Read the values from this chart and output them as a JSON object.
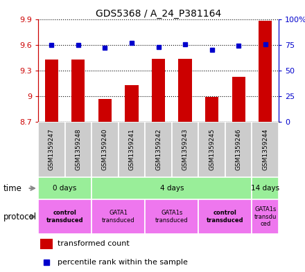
{
  "title": "GDS5368 / A_24_P381164",
  "samples": [
    "GSM1359247",
    "GSM1359248",
    "GSM1359240",
    "GSM1359241",
    "GSM1359242",
    "GSM1359243",
    "GSM1359245",
    "GSM1359246",
    "GSM1359244"
  ],
  "red_values": [
    9.43,
    9.43,
    8.97,
    9.13,
    9.44,
    9.44,
    8.99,
    9.23,
    9.88
  ],
  "blue_values": [
    75,
    75,
    72,
    77,
    73,
    76,
    70,
    74,
    76
  ],
  "ylim_left": [
    8.7,
    9.9
  ],
  "ylim_right": [
    0,
    100
  ],
  "yticks_left": [
    8.7,
    9.0,
    9.3,
    9.6,
    9.9
  ],
  "ytick_labels_left": [
    "8.7",
    "9",
    "9.3",
    "9.6",
    "9.9"
  ],
  "yticks_right": [
    0,
    25,
    50,
    75,
    100
  ],
  "ytick_labels_right": [
    "0",
    "25",
    "50",
    "75",
    "100%"
  ],
  "bar_color": "#cc0000",
  "dot_color": "#0000cc",
  "bar_bottom": 8.7,
  "time_groups": [
    {
      "label": "0 days",
      "start": 0,
      "end": 2,
      "color": "#99ee99"
    },
    {
      "label": "4 days",
      "start": 2,
      "end": 8,
      "color": "#99ee99"
    },
    {
      "label": "14 days",
      "start": 8,
      "end": 9,
      "color": "#99ee99"
    }
  ],
  "protocol_groups": [
    {
      "label": "control\ntransduced",
      "start": 0,
      "end": 2,
      "color": "#ee77ee",
      "bold": true
    },
    {
      "label": "GATA1\ntransduced",
      "start": 2,
      "end": 4,
      "color": "#ee77ee",
      "bold": false
    },
    {
      "label": "GATA1s\ntransduced",
      "start": 4,
      "end": 6,
      "color": "#ee77ee",
      "bold": false
    },
    {
      "label": "control\ntransduced",
      "start": 6,
      "end": 8,
      "color": "#ee77ee",
      "bold": true
    },
    {
      "label": "GATA1s\ntransdu\nced",
      "start": 8,
      "end": 9,
      "color": "#ee77ee",
      "bold": false
    }
  ],
  "sample_bg_color": "#cccccc",
  "left_axis_color": "#cc0000",
  "right_axis_color": "#0000cc",
  "dot_size": 5,
  "bar_width": 0.5
}
